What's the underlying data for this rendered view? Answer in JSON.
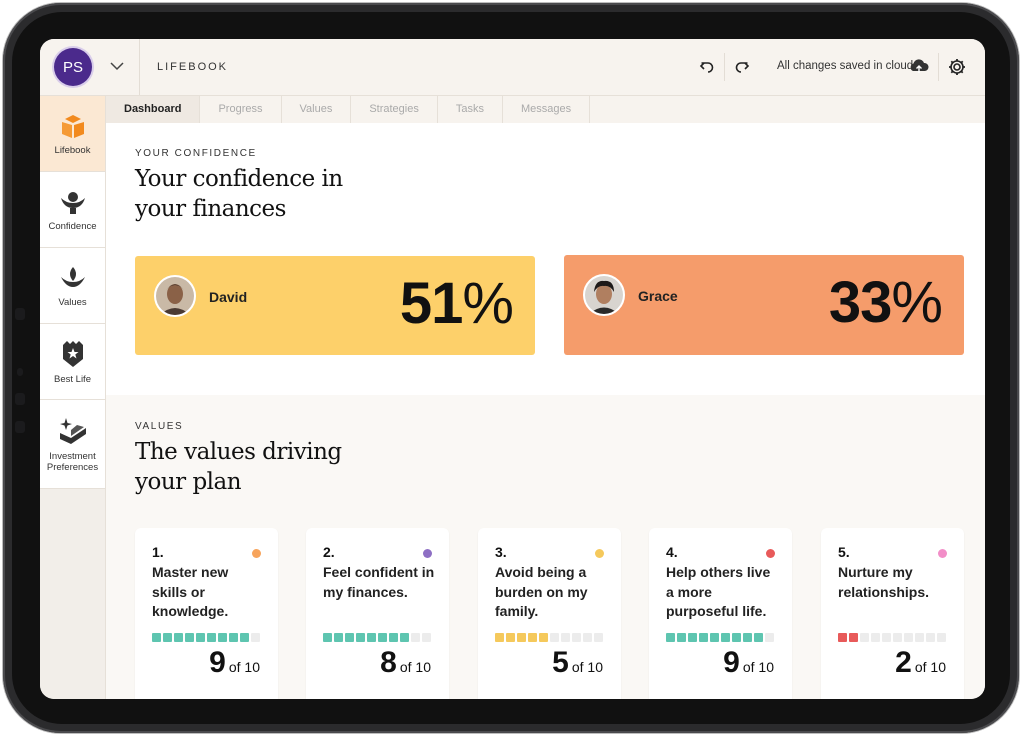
{
  "header": {
    "avatar_initials": "PS",
    "app_title": "LIFEBOOK",
    "save_status": "All changes saved in cloud",
    "icons": [
      "chevron-down-icon",
      "undo-icon",
      "redo-icon",
      "cloud-upload-icon",
      "gear-icon"
    ]
  },
  "sidebar": {
    "items": [
      {
        "label": "Lifebook",
        "icon": "book-icon",
        "active": true
      },
      {
        "label": "Confidence",
        "icon": "confidence-icon",
        "active": false
      },
      {
        "label": "Values",
        "icon": "values-icon",
        "active": false
      },
      {
        "label": "Best Life",
        "icon": "shield-star-icon",
        "active": false
      },
      {
        "label": "Investment Preferences",
        "icon": "investment-icon",
        "active": false
      }
    ]
  },
  "tabs": [
    {
      "label": "Dashboard",
      "active": true
    },
    {
      "label": "Progress",
      "active": false
    },
    {
      "label": "Values",
      "active": false
    },
    {
      "label": "Strategies",
      "active": false
    },
    {
      "label": "Tasks",
      "active": false
    },
    {
      "label": "Messages",
      "active": false
    }
  ],
  "confidence": {
    "eyebrow": "YOUR CONFIDENCE",
    "heading": "Your confidence in your finances",
    "people": [
      {
        "name": "David",
        "value": "51",
        "symbol": "%",
        "color": "#fdd06a"
      },
      {
        "name": "Grace",
        "value": "33",
        "symbol": "%",
        "color": "#f59c6b"
      }
    ]
  },
  "values": {
    "eyebrow": "VALUES",
    "heading": "The values driving your plan",
    "of_label": "of 10",
    "cards": [
      {
        "num": "1.",
        "text": "Master new skills or knowledge.",
        "score": 9,
        "dot": "#f7a45c",
        "fill": "#5ec5b0"
      },
      {
        "num": "2.",
        "text": "Feel confident in my finances.",
        "score": 8,
        "dot": "#8e6fc4",
        "fill": "#5ec5b0"
      },
      {
        "num": "3.",
        "text": "Avoid being a burden on my family.",
        "score": 5,
        "dot": "#f5c95c",
        "fill": "#f5c95c"
      },
      {
        "num": "4.",
        "text": "Help others live a more purposeful life.",
        "score": 9,
        "dot": "#e85a5a",
        "fill": "#5ec5b0"
      },
      {
        "num": "5.",
        "text": "Nurture my relationships.",
        "score": 2,
        "dot": "#f28ec8",
        "fill": "#e85a5a"
      }
    ]
  }
}
